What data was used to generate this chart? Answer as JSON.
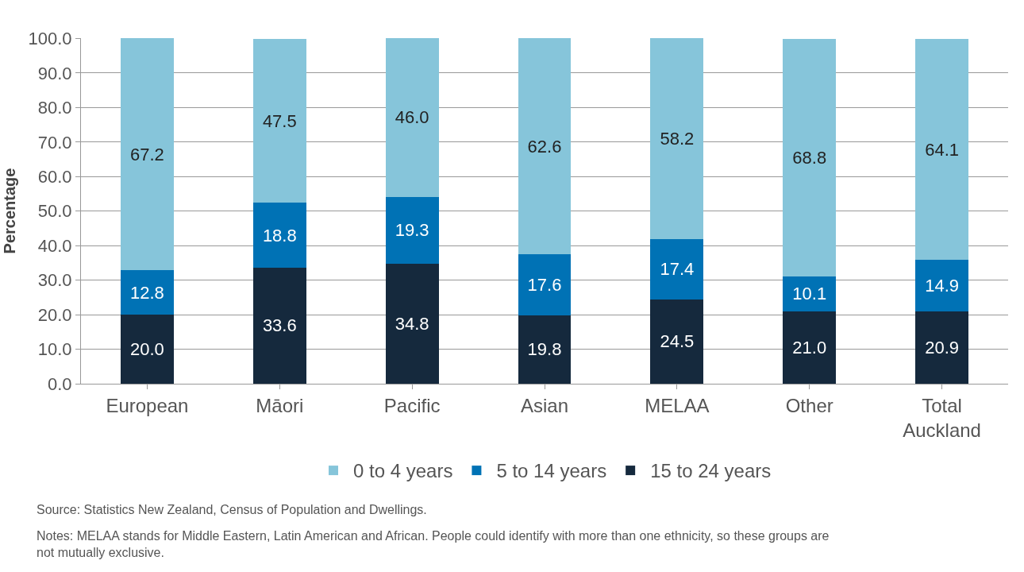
{
  "chart_data": {
    "type": "bar",
    "stacked": true,
    "ylabel": "Percentage",
    "categories": [
      "European",
      "Māori",
      "Pacific",
      "Asian",
      "MELAA",
      "Other",
      "Total Auckland"
    ],
    "series": [
      {
        "name": "15 to 24 years",
        "color": "#15293d",
        "values": [
          20.0,
          33.6,
          34.8,
          19.8,
          24.5,
          21.0,
          20.9
        ],
        "value_labels": [
          "20.0",
          "33.6",
          "34.8",
          "19.8",
          "24.5",
          "21.0",
          "20.9"
        ]
      },
      {
        "name": "5 to 14 years",
        "color": "#0072b5",
        "values": [
          12.8,
          18.8,
          19.3,
          17.6,
          17.4,
          10.1,
          14.9
        ],
        "value_labels": [
          "12.8",
          "18.8",
          "19.3",
          "17.6",
          "17.4",
          "10.1",
          "14.9"
        ]
      },
      {
        "name": "0 to 4 years",
        "color": "#86c5da",
        "values": [
          67.2,
          47.5,
          46.0,
          62.6,
          58.2,
          68.8,
          64.1
        ],
        "value_labels": [
          "67.2",
          "47.5",
          "46.0",
          "62.6",
          "58.2",
          "68.8",
          "64.1"
        ]
      }
    ],
    "ylim": [
      0,
      100.1
    ],
    "yticks": [
      {
        "value": 0,
        "label": "0.0"
      },
      {
        "value": 10,
        "label": "10.0"
      },
      {
        "value": 20,
        "label": "20.0"
      },
      {
        "value": 30,
        "label": "30.0"
      },
      {
        "value": 40,
        "label": "40.0"
      },
      {
        "value": 50,
        "label": "50.0"
      },
      {
        "value": 60,
        "label": "60.0"
      },
      {
        "value": 70,
        "label": "70.0"
      },
      {
        "value": 80,
        "label": "80.0"
      },
      {
        "value": 90,
        "label": "90.0"
      },
      {
        "value": 100,
        "label": "100.0"
      }
    ],
    "grid": "y",
    "legend": "bottom",
    "annotations": [
      "Source: Statistics New Zealand, Census of Population and Dwellings.",
      "Notes: MELAA stands for Middle Eastern, Latin American and African. People could identify with more than one ethnicity, so these groups are not mutually exclusive."
    ]
  }
}
